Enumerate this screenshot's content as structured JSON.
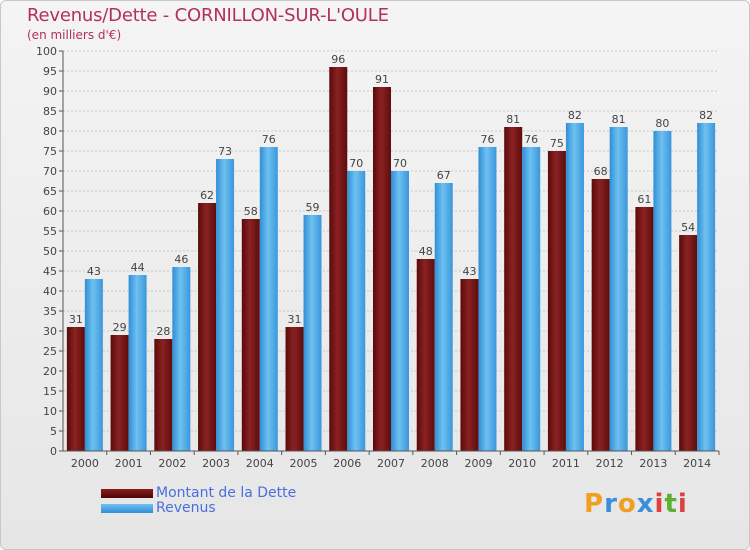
{
  "header": {
    "title": "Revenus/Dette - CORNILLON-SUR-L'OULE",
    "subtitle": "(en milliers d'€)"
  },
  "chart_data": {
    "type": "bar",
    "title": "Revenus/Dette - CORNILLON-SUR-L'OULE",
    "subtitle": "(en milliers d'€)",
    "xlabel": "",
    "ylabel": "",
    "ylim": [
      0,
      100
    ],
    "yticks": [
      0,
      5,
      10,
      15,
      20,
      25,
      30,
      35,
      40,
      45,
      50,
      55,
      60,
      65,
      70,
      75,
      80,
      85,
      90,
      95,
      100
    ],
    "grid": true,
    "legend_position": "bottom-left",
    "categories": [
      "2000",
      "2001",
      "2002",
      "2003",
      "2004",
      "2005",
      "2006",
      "2007",
      "2008",
      "2009",
      "2010",
      "2011",
      "2012",
      "2013",
      "2014"
    ],
    "series": [
      {
        "name": "Montant de la Dette",
        "color": "#7a1414",
        "values": [
          31,
          29,
          28,
          62,
          58,
          31,
          96,
          91,
          48,
          43,
          81,
          75,
          68,
          61,
          54
        ]
      },
      {
        "name": "Revenus",
        "color": "#4aa3e6",
        "values": [
          43,
          44,
          46,
          73,
          76,
          59,
          70,
          70,
          67,
          76,
          76,
          82,
          81,
          80,
          82
        ]
      }
    ]
  },
  "legend": {
    "debt_label": "Montant de la Dette",
    "revenue_label": "Revenus"
  },
  "logo": {
    "letters": [
      "P",
      "r",
      "o",
      "x",
      "i",
      "t",
      "i"
    ],
    "colors": [
      "#f0a020",
      "#3a8fd8",
      "#f0a020",
      "#3a8fd8",
      "#e04040",
      "#5ab030",
      "#e04040"
    ]
  }
}
